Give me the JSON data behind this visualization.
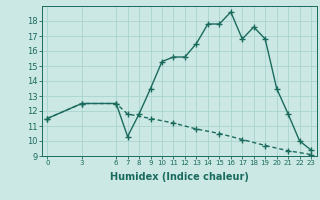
{
  "xlabel": "Humidex (Indice chaleur)",
  "background_color": "#cce8e4",
  "line_color": "#1a6b5e",
  "grid_color": "#aad4ce",
  "x_main": [
    0,
    3,
    6,
    7,
    8,
    9,
    10,
    11,
    12,
    13,
    14,
    15,
    16,
    17,
    18,
    19,
    20,
    21,
    22,
    23
  ],
  "y_main": [
    11.5,
    12.5,
    12.5,
    10.3,
    11.8,
    13.5,
    15.3,
    15.6,
    15.6,
    16.5,
    17.8,
    17.8,
    18.6,
    16.8,
    17.6,
    16.8,
    13.5,
    11.8,
    10.0,
    9.4
  ],
  "x_trend": [
    0,
    3,
    6,
    7,
    9,
    11,
    13,
    15,
    17,
    19,
    21,
    23
  ],
  "y_trend": [
    11.5,
    12.5,
    12.5,
    11.8,
    11.5,
    11.2,
    10.8,
    10.5,
    10.1,
    9.7,
    9.35,
    9.1
  ],
  "xlim": [
    -0.5,
    23.5
  ],
  "ylim": [
    9,
    19
  ],
  "xticks": [
    0,
    3,
    6,
    7,
    8,
    9,
    10,
    11,
    12,
    13,
    14,
    15,
    16,
    17,
    18,
    19,
    20,
    21,
    22,
    23
  ],
  "yticks": [
    9,
    10,
    11,
    12,
    13,
    14,
    15,
    16,
    17,
    18
  ],
  "marker": "+",
  "markersize": 4,
  "linewidth": 1.0,
  "xlabel_fontsize": 7,
  "tick_fontsize": 5,
  "ytick_fontsize": 6
}
